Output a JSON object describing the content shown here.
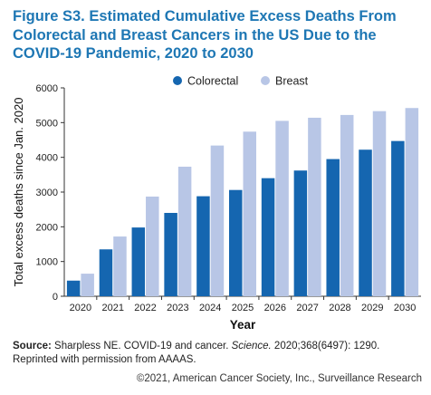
{
  "title": "Figure S3. Estimated Cumulative Excess Deaths From Colorectal and Breast Cancers in the US Due to the COVID-19 Pandemic, 2020 to 2030",
  "source": {
    "label": "Source:",
    "text_before": " Sharpless NE. COVID-19 and cancer. ",
    "journal": "Science.",
    "text_after": " 2020;368(6497): 1290. Reprinted with permission from AAAAS."
  },
  "copyright": "©2021, American Cancer Society, Inc., Surveillance Research",
  "colors": {
    "colorectal": "#1566b0",
    "breast": "#b8c6e6",
    "title": "#1e77b4"
  },
  "chart_data": {
    "type": "bar",
    "title": "",
    "xlabel": "Year",
    "ylabel": "Total excess deaths since Jan. 2020",
    "ylim": [
      0,
      6000
    ],
    "yticks": [
      0,
      1000,
      2000,
      3000,
      4000,
      5000,
      6000
    ],
    "grid": false,
    "legend_position": "top",
    "categories": [
      "2020",
      "2021",
      "2022",
      "2023",
      "2024",
      "2025",
      "2026",
      "2027",
      "2028",
      "2029",
      "2030"
    ],
    "series": [
      {
        "name": "Colorectal",
        "color": "#1566b0",
        "values": [
          450,
          1350,
          1980,
          2400,
          2880,
          3060,
          3400,
          3620,
          3950,
          4220,
          4470
        ]
      },
      {
        "name": "Breast",
        "color": "#b8c6e6",
        "values": [
          650,
          1720,
          2870,
          3730,
          4340,
          4740,
          5050,
          5140,
          5220,
          5330,
          5420
        ]
      }
    ]
  }
}
